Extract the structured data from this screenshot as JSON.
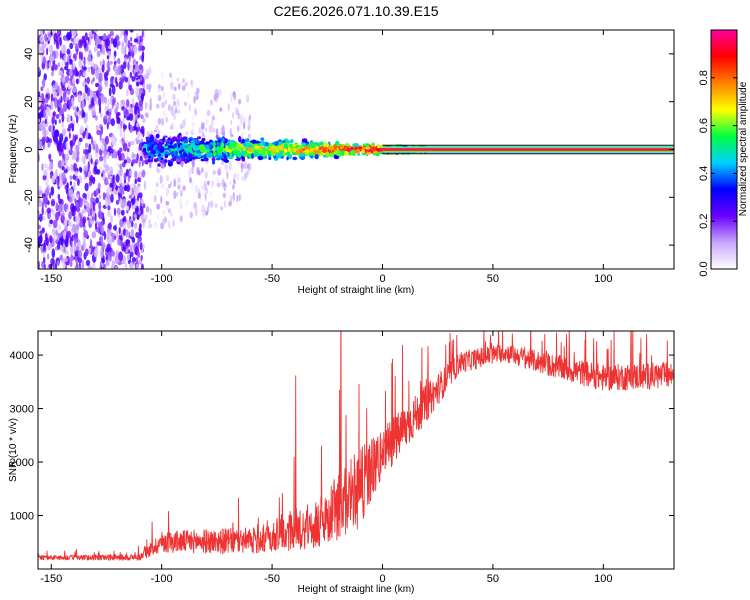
{
  "title": "C2E6.2026.071.10.39.E15",
  "chart_data": [
    {
      "type": "heatmap",
      "name": "spectrogram",
      "xlabel": "Height of straight line (km)",
      "ylabel": "Frequency (Hz)",
      "xlim": [
        -156,
        132
      ],
      "ylim": [
        -50,
        50
      ],
      "x_ticks": [
        -150,
        -100,
        -50,
        0,
        50,
        100
      ],
      "y_ticks": [
        -40,
        -20,
        0,
        20,
        40
      ],
      "colorbar": {
        "label": "Normalized spectral amplitude",
        "range": [
          0,
          1
        ],
        "ticks": [
          0.0,
          0.2,
          0.4,
          0.6,
          0.8
        ],
        "tick_labels": [
          "0.0",
          "0.2",
          "0.4",
          "0.6",
          "0.8"
        ],
        "colormap": [
          "#ffffff",
          "#c9a6ff",
          "#6a00ff",
          "#0000ff",
          "#00d0ff",
          "#00ff40",
          "#ffff00",
          "#ff7f00",
          "#ff0000",
          "#ff00a0"
        ]
      },
      "regions": [
        {
          "name": "broadband noise",
          "x_range": [
            -156,
            -108
          ],
          "freq_halfwidth": 50,
          "amplitude": 0.15
        },
        {
          "name": "sparse noise",
          "x_range": [
            -108,
            -60
          ],
          "freq_halfwidth": 35,
          "amplitude": 0.05
        },
        {
          "name": "signal spread",
          "x_range": [
            -108,
            20
          ],
          "freq_halfwidth_start": 9,
          "freq_halfwidth_end": 1,
          "amplitude_start": 0.3,
          "amplitude_end": 0.9
        },
        {
          "name": "tone",
          "x_range": [
            0,
            132
          ],
          "freq": 0,
          "amplitude": 0.9
        }
      ]
    },
    {
      "type": "line",
      "name": "snr",
      "xlabel": "Height of straight line (km)",
      "ylabel": "SNR (10 * v/v)",
      "xlim": [
        -156,
        132
      ],
      "ylim": [
        0,
        4450
      ],
      "x_ticks": [
        -150,
        -100,
        -50,
        0,
        50,
        100
      ],
      "y_ticks": [
        1000,
        2000,
        3000,
        4000
      ],
      "color": "#ee3333",
      "trend": [
        {
          "x": -156,
          "base": 200,
          "spread": 80
        },
        {
          "x": -110,
          "base": 200,
          "spread": 120
        },
        {
          "x": -100,
          "base": 450,
          "spread": 400
        },
        {
          "x": -60,
          "base": 450,
          "spread": 500
        },
        {
          "x": -30,
          "base": 700,
          "spread": 900
        },
        {
          "x": -12,
          "base": 1200,
          "spread": 1500
        },
        {
          "x": 0,
          "base": 2000,
          "spread": 1000
        },
        {
          "x": 20,
          "base": 3000,
          "spread": 700
        },
        {
          "x": 35,
          "base": 3800,
          "spread": 400
        },
        {
          "x": 55,
          "base": 4000,
          "spread": 350
        },
        {
          "x": 80,
          "base": 3700,
          "spread": 450
        },
        {
          "x": 100,
          "base": 3500,
          "spread": 500
        },
        {
          "x": 132,
          "base": 3550,
          "spread": 500
        }
      ]
    }
  ]
}
